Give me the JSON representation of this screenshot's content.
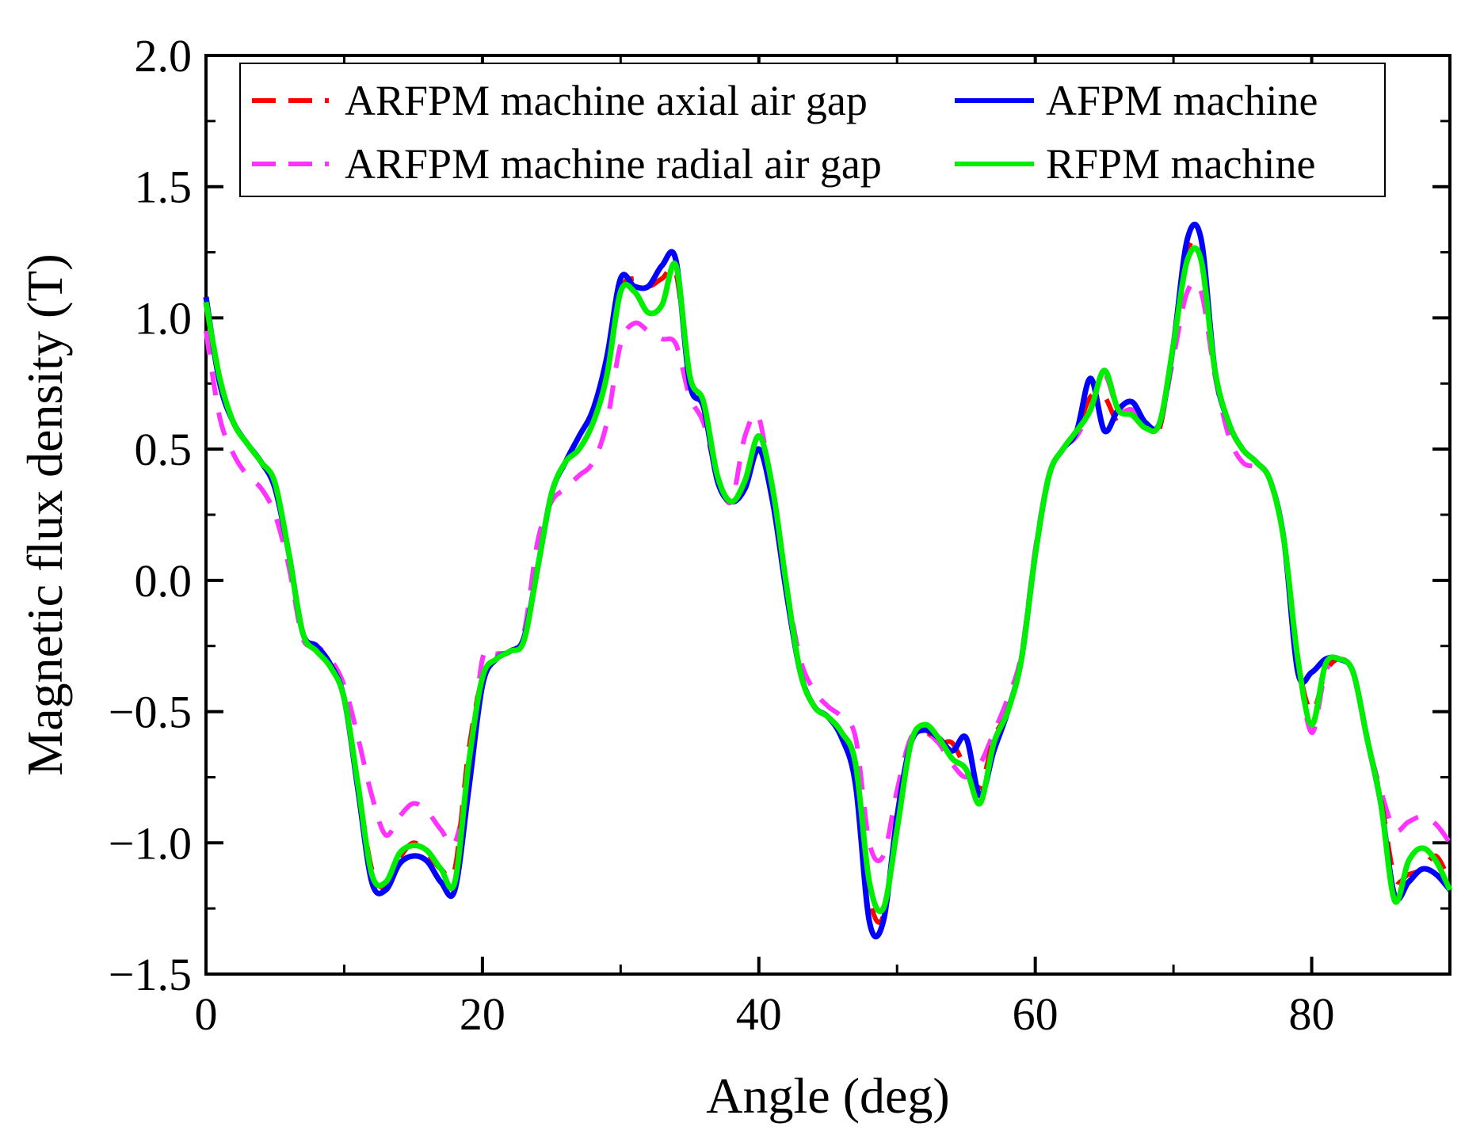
{
  "chart_data": {
    "type": "line",
    "title": "",
    "xlabel": "Angle (deg)",
    "ylabel": "Magnetic flux density (T)",
    "xlim": [
      0,
      90
    ],
    "ylim": [
      -1.5,
      2.0
    ],
    "xticks": [
      0,
      20,
      40,
      60,
      80
    ],
    "xtick_labels": [
      "0",
      "20",
      "40",
      "60",
      "80"
    ],
    "yticks": [
      -1.5,
      -1.0,
      -0.5,
      0.0,
      0.5,
      1.0,
      1.5,
      2.0
    ],
    "ytick_labels": [
      "−1.5",
      "−1.0",
      "−0.5",
      "0.0",
      "0.5",
      "1.0",
      "1.5",
      "2.0"
    ],
    "grid": false,
    "legend_position": "top",
    "series": [
      {
        "name": "ARFPM machine axial air gap",
        "color": "#ff0000",
        "style": "dashed",
        "x": [
          0,
          1,
          2,
          3,
          4,
          5,
          6,
          7,
          8,
          9,
          10,
          11,
          12,
          13,
          14,
          15,
          16,
          17,
          18,
          19,
          20,
          21,
          22,
          23,
          24,
          25,
          26,
          27,
          28,
          29,
          30,
          31,
          32,
          33,
          34,
          35,
          36,
          37,
          38,
          39,
          40,
          41,
          42,
          43,
          44,
          45,
          46,
          47,
          48,
          49,
          50,
          51,
          52,
          53,
          54,
          55,
          56,
          57,
          58,
          59,
          60,
          61,
          62,
          63,
          64,
          65,
          66,
          67,
          68,
          69,
          70,
          71,
          72,
          73,
          74,
          75,
          76,
          77,
          78,
          79,
          80,
          81,
          82,
          83,
          84,
          85,
          86,
          87,
          88,
          89,
          90
        ],
        "y": [
          1.05,
          0.75,
          0.6,
          0.52,
          0.45,
          0.36,
          0.1,
          -0.2,
          -0.27,
          -0.33,
          -0.45,
          -0.78,
          -1.1,
          -1.17,
          -1.06,
          -1.0,
          -1.04,
          -1.1,
          -1.1,
          -0.65,
          -0.37,
          -0.3,
          -0.27,
          -0.23,
          0.05,
          0.33,
          0.45,
          0.5,
          0.6,
          0.78,
          1.1,
          1.15,
          1.12,
          1.15,
          1.17,
          0.78,
          0.68,
          0.4,
          0.3,
          0.38,
          0.5,
          0.3,
          -0.05,
          -0.35,
          -0.48,
          -0.52,
          -0.58,
          -0.7,
          -1.2,
          -1.28,
          -0.9,
          -0.62,
          -0.57,
          -0.62,
          -0.62,
          -0.72,
          -0.79,
          -0.6,
          -0.5,
          -0.3,
          0.1,
          0.4,
          0.5,
          0.57,
          0.7,
          0.7,
          0.6,
          0.63,
          0.58,
          0.58,
          0.9,
          1.25,
          1.25,
          0.8,
          0.6,
          0.5,
          0.45,
          0.38,
          0.15,
          -0.3,
          -0.5,
          -0.35,
          -0.3,
          -0.35,
          -0.6,
          -0.83,
          -1.13,
          -1.12,
          -1.1,
          -1.05,
          -1.15
        ]
      },
      {
        "name": "ARFPM machine radial air gap",
        "color": "#ff33ff",
        "style": "dashed",
        "x": [
          0,
          1,
          2,
          3,
          4,
          5,
          6,
          7,
          8,
          9,
          10,
          11,
          12,
          13,
          14,
          15,
          16,
          17,
          18,
          19,
          20,
          21,
          22,
          23,
          24,
          25,
          26,
          27,
          28,
          29,
          30,
          31,
          32,
          33,
          34,
          35,
          36,
          37,
          38,
          39,
          40,
          41,
          42,
          43,
          44,
          45,
          46,
          47,
          48,
          49,
          50,
          51,
          52,
          53,
          54,
          55,
          56,
          57,
          58,
          59,
          60,
          61,
          62,
          63,
          64,
          65,
          66,
          67,
          68,
          69,
          70,
          71,
          72,
          73,
          74,
          75,
          76,
          77,
          78,
          79,
          80,
          81,
          82,
          83,
          84,
          85,
          86,
          87,
          88,
          89,
          90
        ],
        "y": [
          0.95,
          0.62,
          0.48,
          0.4,
          0.35,
          0.25,
          0.05,
          -0.22,
          -0.25,
          -0.3,
          -0.4,
          -0.6,
          -0.82,
          -0.97,
          -0.9,
          -0.85,
          -0.88,
          -0.95,
          -1.0,
          -0.75,
          -0.3,
          -0.28,
          -0.27,
          -0.2,
          0.15,
          0.3,
          0.35,
          0.4,
          0.45,
          0.6,
          0.9,
          0.98,
          0.95,
          0.92,
          0.9,
          0.7,
          0.6,
          0.4,
          0.3,
          0.55,
          0.62,
          0.3,
          -0.02,
          -0.3,
          -0.42,
          -0.48,
          -0.52,
          -0.6,
          -1.0,
          -1.05,
          -0.8,
          -0.6,
          -0.58,
          -0.62,
          -0.7,
          -0.75,
          -0.7,
          -0.58,
          -0.45,
          -0.28,
          0.12,
          0.4,
          0.5,
          0.55,
          0.65,
          0.78,
          0.65,
          0.65,
          0.6,
          0.6,
          0.85,
          1.1,
          1.1,
          0.78,
          0.55,
          0.45,
          0.43,
          0.38,
          0.15,
          -0.3,
          -0.58,
          -0.35,
          -0.3,
          -0.35,
          -0.6,
          -0.8,
          -0.95,
          -0.92,
          -0.9,
          -0.93,
          -1.0
        ]
      },
      {
        "name": "AFPM machine",
        "color": "#0000ff",
        "style": "solid",
        "x": [
          0,
          1,
          2,
          3,
          4,
          5,
          6,
          7,
          8,
          9,
          10,
          11,
          12,
          13,
          14,
          15,
          16,
          17,
          18,
          19,
          20,
          21,
          22,
          23,
          24,
          25,
          26,
          27,
          28,
          29,
          30,
          31,
          32,
          33,
          34,
          35,
          36,
          37,
          38,
          39,
          40,
          41,
          42,
          43,
          44,
          45,
          46,
          47,
          48,
          49,
          50,
          51,
          52,
          53,
          54,
          55,
          56,
          57,
          58,
          59,
          60,
          61,
          62,
          63,
          64,
          65,
          66,
          67,
          68,
          69,
          70,
          71,
          72,
          73,
          74,
          75,
          76,
          77,
          78,
          79,
          80,
          81,
          82,
          83,
          84,
          85,
          86,
          87,
          88,
          89,
          90
        ],
        "y": [
          1.08,
          0.75,
          0.6,
          0.52,
          0.45,
          0.35,
          0.1,
          -0.2,
          -0.25,
          -0.32,
          -0.45,
          -0.8,
          -1.15,
          -1.18,
          -1.08,
          -1.05,
          -1.07,
          -1.15,
          -1.18,
          -0.8,
          -0.4,
          -0.3,
          -0.27,
          -0.22,
          0.05,
          0.33,
          0.45,
          0.55,
          0.65,
          0.85,
          1.15,
          1.12,
          1.12,
          1.2,
          1.22,
          0.75,
          0.66,
          0.38,
          0.3,
          0.35,
          0.5,
          0.3,
          -0.05,
          -0.35,
          -0.48,
          -0.52,
          -0.6,
          -0.78,
          -1.3,
          -1.3,
          -0.9,
          -0.62,
          -0.57,
          -0.6,
          -0.65,
          -0.6,
          -0.82,
          -0.65,
          -0.5,
          -0.3,
          0.1,
          0.4,
          0.5,
          0.57,
          0.77,
          0.57,
          0.65,
          0.68,
          0.6,
          0.6,
          0.9,
          1.3,
          1.3,
          0.8,
          0.6,
          0.5,
          0.45,
          0.38,
          0.15,
          -0.35,
          -0.35,
          -0.3,
          -0.3,
          -0.35,
          -0.6,
          -0.85,
          -1.2,
          -1.15,
          -1.1,
          -1.12,
          -1.18
        ]
      },
      {
        "name": "RFPM machine",
        "color": "#00ee00",
        "style": "solid",
        "x": [
          0,
          1,
          2,
          3,
          4,
          5,
          6,
          7,
          8,
          9,
          10,
          11,
          12,
          13,
          14,
          15,
          16,
          17,
          18,
          19,
          20,
          21,
          22,
          23,
          24,
          25,
          26,
          27,
          28,
          29,
          30,
          31,
          32,
          33,
          34,
          35,
          36,
          37,
          38,
          39,
          40,
          41,
          42,
          43,
          44,
          45,
          46,
          47,
          48,
          49,
          50,
          51,
          52,
          53,
          54,
          55,
          56,
          57,
          58,
          59,
          60,
          61,
          62,
          63,
          64,
          65,
          66,
          67,
          68,
          69,
          70,
          71,
          72,
          73,
          74,
          75,
          76,
          77,
          78,
          79,
          80,
          81,
          82,
          83,
          84,
          85,
          86,
          87,
          88,
          89,
          90
        ],
        "y": [
          1.06,
          0.77,
          0.6,
          0.52,
          0.45,
          0.37,
          0.1,
          -0.2,
          -0.27,
          -0.33,
          -0.45,
          -0.78,
          -1.12,
          -1.15,
          -1.04,
          -1.01,
          -1.03,
          -1.1,
          -1.15,
          -0.7,
          -0.37,
          -0.3,
          -0.27,
          -0.23,
          0.05,
          0.33,
          0.45,
          0.5,
          0.6,
          0.78,
          1.1,
          1.1,
          1.02,
          1.05,
          1.2,
          0.78,
          0.68,
          0.4,
          0.3,
          0.38,
          0.55,
          0.35,
          -0.02,
          -0.35,
          -0.48,
          -0.52,
          -0.58,
          -0.7,
          -1.15,
          -1.25,
          -0.95,
          -0.62,
          -0.55,
          -0.6,
          -0.68,
          -0.72,
          -0.85,
          -0.62,
          -0.5,
          -0.3,
          0.1,
          0.4,
          0.5,
          0.57,
          0.65,
          0.8,
          0.65,
          0.63,
          0.58,
          0.6,
          0.9,
          1.22,
          1.22,
          0.8,
          0.6,
          0.5,
          0.45,
          0.38,
          0.15,
          -0.3,
          -0.55,
          -0.32,
          -0.3,
          -0.35,
          -0.6,
          -0.85,
          -1.22,
          -1.07,
          -1.02,
          -1.07,
          -1.18
        ]
      }
    ]
  }
}
